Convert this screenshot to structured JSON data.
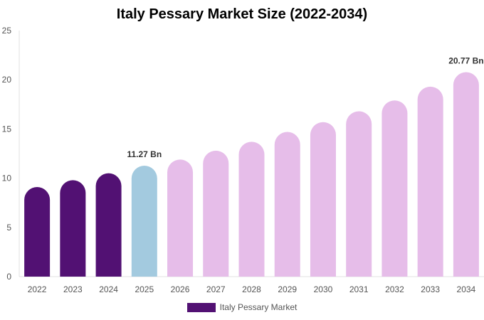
{
  "chart_data": {
    "type": "bar",
    "title": "Italy Pessary Market Size (2022-2034)",
    "categories": [
      "2022",
      "2023",
      "2024",
      "2025",
      "2026",
      "2027",
      "2028",
      "2029",
      "2030",
      "2031",
      "2032",
      "2033",
      "2034"
    ],
    "series": [
      {
        "name": "Italy Pessary Market",
        "values": [
          9.1,
          9.8,
          10.5,
          11.27,
          11.9,
          12.8,
          13.7,
          14.7,
          15.7,
          16.8,
          17.9,
          19.3,
          20.77
        ]
      }
    ],
    "highlight_colors": [
      "#521173",
      "#521173",
      "#521173",
      "#a3cadf",
      "#e6bde9",
      "#e6bde9",
      "#e6bde9",
      "#e6bde9",
      "#e6bde9",
      "#e6bde9",
      "#e6bde9",
      "#e6bde9",
      "#e6bde9"
    ],
    "annotations": [
      {
        "index": 3,
        "text": "11.27 Bn"
      },
      {
        "index": 12,
        "text": "20.77 Bn"
      }
    ],
    "yticks": [
      "0",
      "5",
      "10",
      "15",
      "20",
      "25"
    ],
    "ylim": [
      0,
      25
    ],
    "legend_color": "#521173",
    "legend_position": "bottom"
  }
}
